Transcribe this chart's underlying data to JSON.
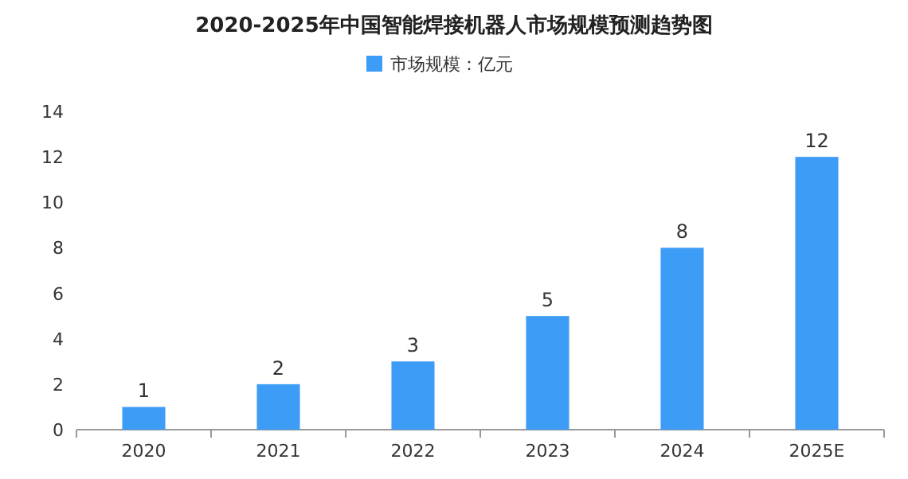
{
  "chart_data": {
    "type": "bar",
    "title": "2020-2025年中国智能焊接机器人市场规模预测趋势图",
    "categories": [
      "2020",
      "2021",
      "2022",
      "2023",
      "2024",
      "2025E"
    ],
    "series": [
      {
        "name": "市场规模：亿元",
        "color": "#3d9cf5",
        "values": [
          1,
          2,
          3,
          5,
          8,
          12
        ]
      }
    ],
    "ylim": [
      0,
      14
    ],
    "yticks": [
      0,
      2,
      4,
      6,
      8,
      10,
      12,
      14
    ],
    "data_labels": true,
    "legend": "top",
    "grid": false
  }
}
